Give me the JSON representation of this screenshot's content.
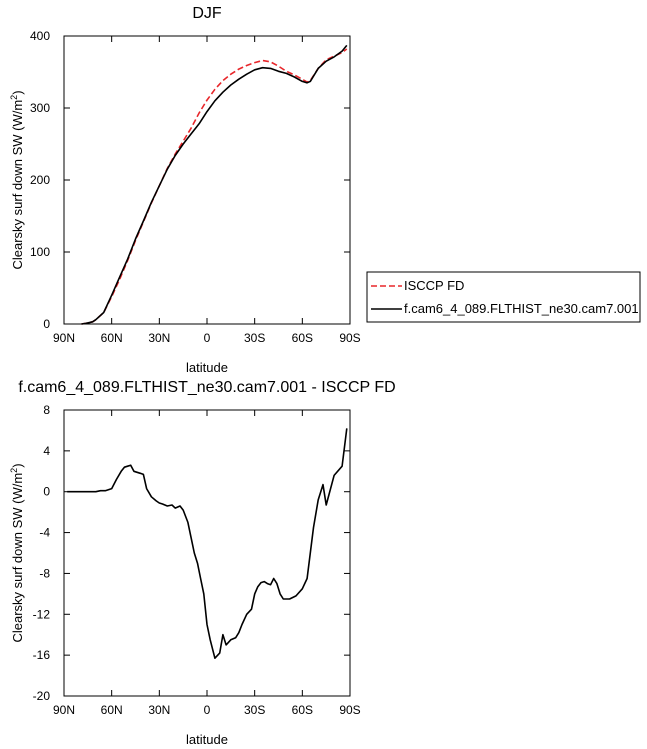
{
  "chart_data": [
    {
      "type": "line",
      "title": "DJF",
      "xlabel": "latitude",
      "ylabel": "Clearsky surf down SW (W/m",
      "ylabel_sup": "2",
      "ylabel_end": ")",
      "xlim": [
        90,
        -90
      ],
      "ylim": [
        0,
        400
      ],
      "x_ticks": [
        90,
        60,
        30,
        0,
        -30,
        -60,
        -90
      ],
      "x_tick_labels": [
        "90N",
        "60N",
        "30N",
        "0",
        "30S",
        "60S",
        "90S"
      ],
      "y_ticks": [
        0,
        100,
        200,
        300,
        400
      ],
      "y_tick_labels": [
        "0",
        "100",
        "200",
        "300",
        "400"
      ],
      "grid": false,
      "legend_position": "outside-right",
      "series": [
        {
          "name": "ISCCP FD",
          "color": "#e8262a",
          "dash": "dashed",
          "x": [
            79,
            76,
            72,
            70,
            65,
            60,
            55,
            50,
            45,
            40,
            35,
            30,
            25,
            20,
            15,
            10,
            5,
            0,
            -5,
            -10,
            -15,
            -20,
            -25,
            -30,
            -35,
            -40,
            -45,
            -50,
            -55,
            -60,
            -63,
            -65,
            -70,
            -75,
            -80,
            -85,
            -88
          ],
          "y": [
            0,
            1,
            3,
            6,
            16,
            38,
            62,
            88,
            116,
            142,
            168,
            192,
            216,
            236,
            254,
            272,
            293,
            311,
            326,
            338,
            347,
            354,
            359,
            363,
            366,
            364,
            358,
            351,
            346,
            340,
            336,
            338,
            355,
            367,
            372,
            377,
            382
          ]
        },
        {
          "name": "f.cam6_4_089.FLTHIST_ne30.cam7.001",
          "color": "#000000",
          "dash": "solid",
          "x": [
            79,
            76,
            72,
            70,
            65,
            60,
            55,
            50,
            45,
            40,
            35,
            30,
            25,
            20,
            15,
            10,
            5,
            0,
            -5,
            -10,
            -15,
            -20,
            -25,
            -30,
            -35,
            -40,
            -45,
            -50,
            -55,
            -60,
            -63,
            -65,
            -70,
            -75,
            -80,
            -85,
            -88
          ],
          "y": [
            0,
            1,
            3,
            6,
            16,
            40,
            65,
            90,
            118,
            143,
            169,
            192,
            215,
            234,
            250,
            264,
            278,
            295,
            310,
            322,
            332,
            340,
            347,
            353,
            356,
            355,
            351,
            348,
            343,
            337,
            335,
            337,
            355,
            365,
            371,
            379,
            387
          ]
        }
      ]
    },
    {
      "type": "line",
      "title": "f.cam6_4_089.FLTHIST_ne30.cam7.001 - ISCCP FD",
      "xlabel": "latitude",
      "ylabel": "Clearsky surf down SW (W/m",
      "ylabel_sup": "2",
      "ylabel_end": ")",
      "xlim": [
        90,
        -90
      ],
      "ylim": [
        -20,
        8
      ],
      "x_ticks": [
        90,
        60,
        30,
        0,
        -30,
        -60,
        -90
      ],
      "x_tick_labels": [
        "90N",
        "60N",
        "30N",
        "0",
        "30S",
        "60S",
        "90S"
      ],
      "y_ticks": [
        -20,
        -16,
        -12,
        -8,
        -4,
        0,
        4,
        8
      ],
      "y_tick_labels": [
        "-20",
        "-16",
        "-12",
        "-8",
        "-4",
        "0",
        "4",
        "8"
      ],
      "grid": false,
      "series": [
        {
          "color": "#000000",
          "x": [
            88,
            80,
            75,
            70,
            67,
            64,
            60,
            57,
            54,
            52,
            50,
            48,
            46,
            42,
            40,
            38,
            35,
            32,
            30,
            28,
            25,
            22,
            20,
            17,
            15,
            12,
            10,
            8,
            6,
            4,
            2,
            0,
            -2,
            -5,
            -8,
            -10,
            -12,
            -15,
            -18,
            -20,
            -22,
            -25,
            -28,
            -30,
            -32,
            -34,
            -36,
            -38,
            -40,
            -42,
            -44,
            -46,
            -48,
            -52,
            -56,
            -60,
            -63,
            -65,
            -67,
            -70,
            -73,
            -75,
            -80,
            -85,
            -88
          ],
          "y": [
            0,
            0,
            0,
            0,
            0.1,
            0.1,
            0.3,
            1.2,
            2.0,
            2.4,
            2.5,
            2.6,
            2.0,
            1.8,
            1.7,
            0.3,
            -0.5,
            -0.9,
            -1.1,
            -1.2,
            -1.4,
            -1.3,
            -1.6,
            -1.4,
            -1.8,
            -3.0,
            -4.5,
            -6.0,
            -7.0,
            -8.5,
            -10.0,
            -13.0,
            -14.5,
            -16.3,
            -15.8,
            -14.0,
            -15.0,
            -14.5,
            -14.3,
            -13.8,
            -13.0,
            -12.0,
            -11.5,
            -10.0,
            -9.3,
            -8.9,
            -8.8,
            -9.0,
            -9.1,
            -8.5,
            -9.0,
            -10.0,
            -10.5,
            -10.5,
            -10.2,
            -9.5,
            -8.5,
            -6.0,
            -3.5,
            -0.8,
            0.7,
            -1.3,
            1.6,
            2.5,
            6.2
          ]
        }
      ]
    }
  ]
}
